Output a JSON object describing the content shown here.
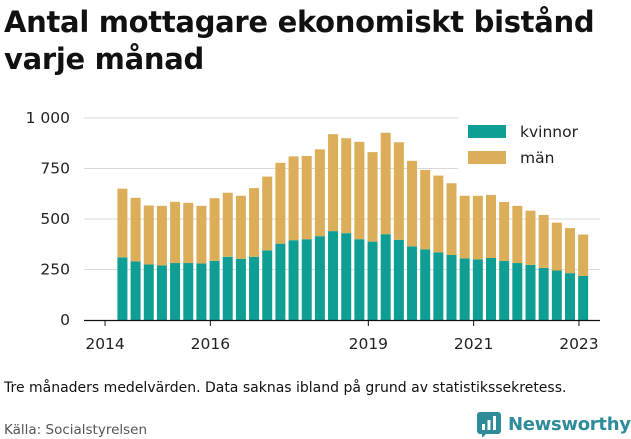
{
  "title_lines": [
    "Antal mottagare ekonomiskt bistånd",
    "varje månad"
  ],
  "note": "Tre månaders medelvärden. Data saknas ibland på grund av statistikssekretess.",
  "source": "Källa: Socialstyrelsen",
  "brand": {
    "name": "Newsworthy",
    "icon": "newsworthy-logo-icon",
    "color": "#2e8b9a"
  },
  "chart_data": {
    "type": "bar",
    "stacked": true,
    "title": "Antal mottagare ekonomiskt bistånd varje månad",
    "ylim": [
      0,
      1000
    ],
    "yticks": [
      0,
      250,
      500,
      750,
      1000
    ],
    "ytick_labels": [
      "0",
      "250",
      "500",
      "750",
      "1 000"
    ],
    "x_range": [
      2013.6,
      2023.4
    ],
    "xticks": [
      2014,
      2016,
      2019,
      2021,
      2023
    ],
    "grid": "horizontal",
    "legend_position": "top-right",
    "x": [
      2014.33,
      2014.58,
      2014.83,
      2015.08,
      2015.33,
      2015.58,
      2015.83,
      2016.08,
      2016.33,
      2016.58,
      2016.83,
      2017.08,
      2017.33,
      2017.58,
      2017.83,
      2018.08,
      2018.33,
      2018.58,
      2018.83,
      2019.08,
      2019.33,
      2019.58,
      2019.83,
      2020.08,
      2020.33,
      2020.58,
      2020.83,
      2021.08,
      2021.33,
      2021.58,
      2021.83,
      2022.08,
      2022.33,
      2022.58,
      2022.83,
      2023.08
    ],
    "series": [
      {
        "name": "kvinnor",
        "color": "#0f9e94",
        "values": [
          310,
          290,
          275,
          270,
          282,
          282,
          280,
          293,
          313,
          303,
          313,
          345,
          378,
          395,
          400,
          415,
          440,
          430,
          400,
          388,
          425,
          397,
          365,
          350,
          335,
          322,
          305,
          300,
          307,
          292,
          282,
          273,
          258,
          245,
          232,
          218
        ]
      },
      {
        "name": "män",
        "color": "#dcae59",
        "values": [
          340,
          315,
          292,
          295,
          303,
          298,
          285,
          310,
          317,
          312,
          340,
          365,
          400,
          415,
          412,
          430,
          480,
          470,
          482,
          443,
          502,
          483,
          423,
          393,
          380,
          355,
          310,
          315,
          312,
          292,
          283,
          268,
          262,
          237,
          223,
          205
        ]
      }
    ]
  }
}
